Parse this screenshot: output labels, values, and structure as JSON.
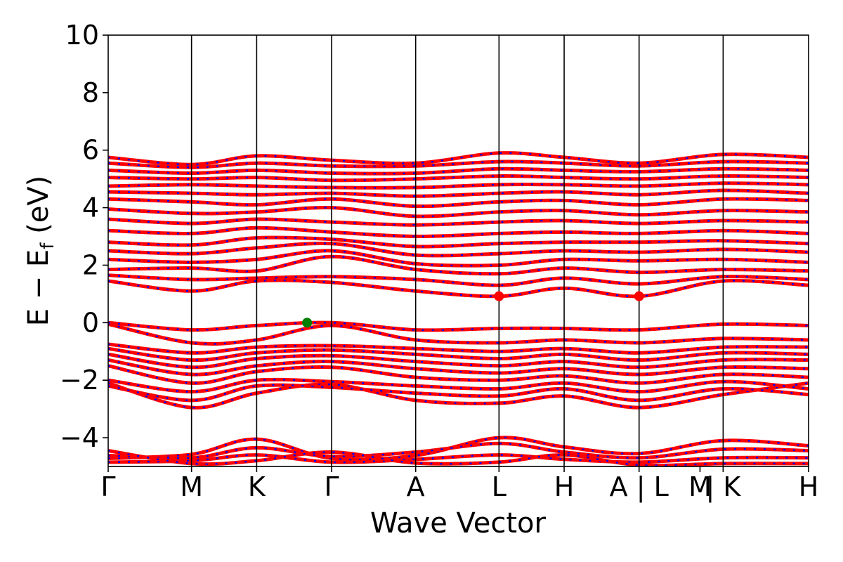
{
  "chart_data": {
    "type": "line",
    "title": "",
    "xlabel": "Wave Vector",
    "ylabel": {
      "base": "E − E",
      "subscript": "f",
      "suffix": " (eV)"
    },
    "ylim": [
      -5,
      10
    ],
    "yticks": [
      -4,
      -2,
      0,
      2,
      4,
      6,
      8,
      10
    ],
    "ytick_labels": [
      "−4",
      "−2",
      "0",
      "2",
      "4",
      "6",
      "8",
      "10"
    ],
    "xlim": [
      0,
      10
    ],
    "kpoint_ticks": [
      {
        "x": 0.0,
        "label": "Γ"
      },
      {
        "x": 1.19,
        "label": "M"
      },
      {
        "x": 2.12,
        "label": "K"
      },
      {
        "x": 3.19,
        "label": "Γ"
      },
      {
        "x": 4.39,
        "label": "A"
      },
      {
        "x": 5.58,
        "label": "L"
      },
      {
        "x": 6.51,
        "label": "H"
      },
      {
        "x": 7.58,
        "label": "A | L"
      },
      {
        "x": 8.45,
        "label": "M"
      },
      {
        "x": 8.78,
        "label": "| K"
      },
      {
        "x": 10.0,
        "label": "H"
      }
    ],
    "vertical_lines_x": [
      1.19,
      2.12,
      3.19,
      4.39,
      5.58,
      6.51,
      7.58,
      8.78
    ],
    "grid": false,
    "band_colors": {
      "spin_up": "#ff0000",
      "spin_down": "#0000ff"
    },
    "vbm": {
      "x": 2.84,
      "y": 0.0,
      "color": "#007f00"
    },
    "cbm": [
      {
        "x": 5.58,
        "y": 0.92,
        "color": "#ff0000"
      },
      {
        "x": 7.58,
        "y": 0.92,
        "color": "#ff0000"
      }
    ],
    "bands": [
      {
        "x": [
          0,
          1.19,
          2.12,
          3.19,
          4.39,
          5.58,
          6.51,
          7.58,
          8.78,
          10
        ],
        "y": [
          -4.72,
          -4.58,
          -4.05,
          -4.72,
          -4.62,
          -4.0,
          -4.32,
          -4.55,
          -4.1,
          -4.28
        ]
      },
      {
        "x": [
          0,
          1.19,
          2.12,
          3.19,
          4.39,
          5.58,
          6.51,
          7.58,
          8.78,
          10
        ],
        "y": [
          -4.62,
          -4.7,
          -4.35,
          -4.65,
          -4.5,
          -4.2,
          -4.5,
          -4.7,
          -4.4,
          -4.45
        ]
      },
      {
        "x": [
          0,
          1.19,
          2.12,
          3.19,
          4.39,
          5.58,
          6.51,
          7.58,
          8.78,
          10
        ],
        "y": [
          -4.85,
          -4.8,
          -4.6,
          -4.85,
          -4.75,
          -4.6,
          -4.75,
          -4.85,
          -4.7,
          -4.7
        ]
      },
      {
        "x": [
          0,
          1.19,
          2.12,
          3.19,
          4.39,
          5.58,
          6.51,
          7.58,
          8.78,
          10
        ],
        "y": [
          -4.45,
          -4.9,
          -4.8,
          -4.5,
          -4.88,
          -4.85,
          -4.6,
          -4.95,
          -4.9,
          -4.9
        ]
      },
      {
        "x": [
          0,
          1.19,
          2.12,
          3.19,
          4.39,
          5.58,
          6.51,
          7.58,
          8.78,
          10
        ],
        "y": [
          -2.1,
          -2.95,
          -2.45,
          -2.15,
          -2.7,
          -2.8,
          -2.55,
          -2.95,
          -2.5,
          -2.1
        ]
      },
      {
        "x": [
          0,
          1.19,
          2.12,
          3.19,
          4.39,
          5.58,
          6.51,
          7.58,
          8.78,
          10
        ],
        "y": [
          -2.2,
          -2.7,
          -2.2,
          -2.25,
          -2.45,
          -2.55,
          -2.3,
          -2.7,
          -2.3,
          -2.5
        ]
      },
      {
        "x": [
          0,
          1.19,
          2.12,
          3.19,
          4.39,
          5.58,
          6.51,
          7.58,
          8.78,
          10
        ],
        "y": [
          -2.0,
          -2.4,
          -2.0,
          -2.05,
          -2.2,
          -2.3,
          -2.1,
          -2.4,
          -2.05,
          -2.3
        ]
      },
      {
        "x": [
          0,
          1.19,
          2.12,
          3.19,
          4.39,
          5.58,
          6.51,
          7.58,
          8.78,
          10
        ],
        "y": [
          -1.5,
          -2.1,
          -1.7,
          -1.55,
          -1.9,
          -2.0,
          -1.85,
          -2.1,
          -1.8,
          -1.9
        ]
      },
      {
        "x": [
          0,
          1.19,
          2.12,
          3.19,
          4.39,
          5.58,
          6.51,
          7.58,
          8.78,
          10
        ],
        "y": [
          -1.3,
          -1.8,
          -1.5,
          -1.35,
          -1.6,
          -1.75,
          -1.6,
          -1.8,
          -1.55,
          -1.6
        ]
      },
      {
        "x": [
          0,
          1.19,
          2.12,
          3.19,
          4.39,
          5.58,
          6.51,
          7.58,
          8.78,
          10
        ],
        "y": [
          -1.1,
          -1.55,
          -1.25,
          -1.15,
          -1.35,
          -1.5,
          -1.35,
          -1.55,
          -1.3,
          -1.3
        ]
      },
      {
        "x": [
          0,
          1.19,
          2.12,
          3.19,
          4.39,
          5.58,
          6.51,
          7.58,
          8.78,
          10
        ],
        "y": [
          -0.9,
          -1.3,
          -1.05,
          -0.95,
          -1.1,
          -1.25,
          -1.1,
          -1.3,
          -1.05,
          -1.1
        ]
      },
      {
        "x": [
          0,
          1.19,
          2.12,
          3.19,
          4.39,
          5.58,
          6.51,
          7.58,
          8.78,
          10
        ],
        "y": [
          -0.75,
          -1.05,
          -0.85,
          -0.8,
          -0.9,
          -1.0,
          -0.9,
          -1.05,
          -0.85,
          -0.85
        ]
      },
      {
        "x": [
          0,
          1.19,
          2.12,
          3.19,
          4.39,
          5.58,
          6.51,
          7.58,
          8.78,
          10
        ],
        "y": [
          -0.05,
          -0.7,
          -0.6,
          -0.1,
          -0.6,
          -0.7,
          -0.6,
          -0.7,
          -0.55,
          -0.6
        ]
      },
      {
        "x": [
          0,
          1.19,
          2.12,
          3.19,
          4.39,
          5.58,
          6.51,
          7.58,
          8.78,
          10
        ],
        "y": [
          0.0,
          -0.25,
          -0.1,
          0.0,
          -0.25,
          -0.2,
          -0.2,
          -0.25,
          -0.05,
          -0.1
        ]
      },
      {
        "x": [
          0,
          1.19,
          2.12,
          3.19,
          4.39,
          5.58,
          6.51,
          7.58,
          8.78,
          10
        ],
        "y": [
          1.45,
          1.1,
          1.45,
          1.4,
          1.1,
          0.92,
          1.2,
          0.92,
          1.45,
          1.3
        ]
      },
      {
        "x": [
          0,
          1.19,
          2.12,
          3.19,
          4.39,
          5.58,
          6.51,
          7.58,
          8.78,
          10
        ],
        "y": [
          1.65,
          1.5,
          1.55,
          1.6,
          1.5,
          1.3,
          1.55,
          1.35,
          1.6,
          1.5
        ]
      },
      {
        "x": [
          0,
          1.19,
          2.12,
          3.19,
          4.39,
          5.58,
          6.51,
          7.58,
          8.78,
          10
        ],
        "y": [
          1.85,
          1.9,
          1.8,
          2.3,
          1.85,
          1.7,
          1.9,
          1.75,
          1.85,
          1.8
        ]
      },
      {
        "x": [
          0,
          1.19,
          2.12,
          3.19,
          4.39,
          5.58,
          6.51,
          7.58,
          8.78,
          10
        ],
        "y": [
          2.2,
          2.1,
          2.2,
          2.5,
          2.05,
          2.0,
          2.2,
          2.15,
          2.2,
          2.1
        ]
      },
      {
        "x": [
          0,
          1.19,
          2.12,
          3.19,
          4.39,
          5.58,
          6.51,
          7.58,
          8.78,
          10
        ],
        "y": [
          2.5,
          2.4,
          2.6,
          2.75,
          2.35,
          2.4,
          2.5,
          2.45,
          2.55,
          2.45
        ]
      },
      {
        "x": [
          0,
          1.19,
          2.12,
          3.19,
          4.39,
          5.58,
          6.51,
          7.58,
          8.78,
          10
        ],
        "y": [
          2.8,
          2.7,
          2.95,
          2.9,
          2.65,
          2.75,
          2.8,
          2.8,
          2.85,
          2.75
        ]
      },
      {
        "x": [
          0,
          1.19,
          2.12,
          3.19,
          4.39,
          5.58,
          6.51,
          7.58,
          8.78,
          10
        ],
        "y": [
          3.2,
          3.1,
          3.3,
          3.15,
          3.0,
          3.1,
          3.15,
          3.1,
          3.2,
          3.1
        ]
      },
      {
        "x": [
          0,
          1.19,
          2.12,
          3.19,
          4.39,
          5.58,
          6.51,
          7.58,
          8.78,
          10
        ],
        "y": [
          3.6,
          3.45,
          3.6,
          3.5,
          3.4,
          3.5,
          3.55,
          3.45,
          3.55,
          3.5
        ]
      },
      {
        "x": [
          0,
          1.19,
          2.12,
          3.19,
          4.39,
          5.58,
          6.51,
          7.58,
          8.78,
          10
        ],
        "y": [
          3.95,
          3.8,
          3.85,
          4.0,
          3.7,
          3.85,
          3.9,
          3.75,
          3.9,
          3.85
        ]
      },
      {
        "x": [
          0,
          1.19,
          2.12,
          3.19,
          4.39,
          5.58,
          6.51,
          7.58,
          8.78,
          10
        ],
        "y": [
          4.3,
          4.2,
          4.1,
          4.3,
          4.05,
          4.2,
          4.25,
          4.1,
          4.3,
          4.25
        ]
      },
      {
        "x": [
          0,
          1.19,
          2.12,
          3.19,
          4.39,
          5.58,
          6.51,
          7.58,
          8.78,
          10
        ],
        "y": [
          4.55,
          4.5,
          4.45,
          4.5,
          4.4,
          4.5,
          4.55,
          4.45,
          4.6,
          4.5
        ]
      },
      {
        "x": [
          0,
          1.19,
          2.12,
          3.19,
          4.39,
          5.58,
          6.51,
          7.58,
          8.78,
          10
        ],
        "y": [
          4.75,
          4.8,
          4.75,
          4.7,
          4.7,
          4.8,
          4.8,
          4.75,
          4.85,
          4.8
        ]
      },
      {
        "x": [
          0,
          1.19,
          2.12,
          3.19,
          4.39,
          5.58,
          6.51,
          7.58,
          8.78,
          10
        ],
        "y": [
          5.05,
          5.0,
          5.05,
          4.95,
          5.0,
          5.1,
          5.05,
          5.0,
          5.1,
          5.05
        ]
      },
      {
        "x": [
          0,
          1.19,
          2.12,
          3.19,
          4.39,
          5.58,
          6.51,
          7.58,
          8.78,
          10
        ],
        "y": [
          5.3,
          5.2,
          5.3,
          5.2,
          5.2,
          5.35,
          5.3,
          5.25,
          5.35,
          5.3
        ]
      },
      {
        "x": [
          0,
          1.19,
          2.12,
          3.19,
          4.39,
          5.58,
          6.51,
          7.58,
          8.78,
          10
        ],
        "y": [
          5.55,
          5.4,
          5.55,
          5.45,
          5.45,
          5.6,
          5.55,
          5.45,
          5.6,
          5.55
        ]
      },
      {
        "x": [
          0,
          1.19,
          2.12,
          3.19,
          4.39,
          5.58,
          6.51,
          7.58,
          8.78,
          10
        ],
        "y": [
          5.75,
          5.5,
          5.8,
          5.65,
          5.55,
          5.9,
          5.75,
          5.55,
          5.85,
          5.75
        ]
      }
    ]
  }
}
